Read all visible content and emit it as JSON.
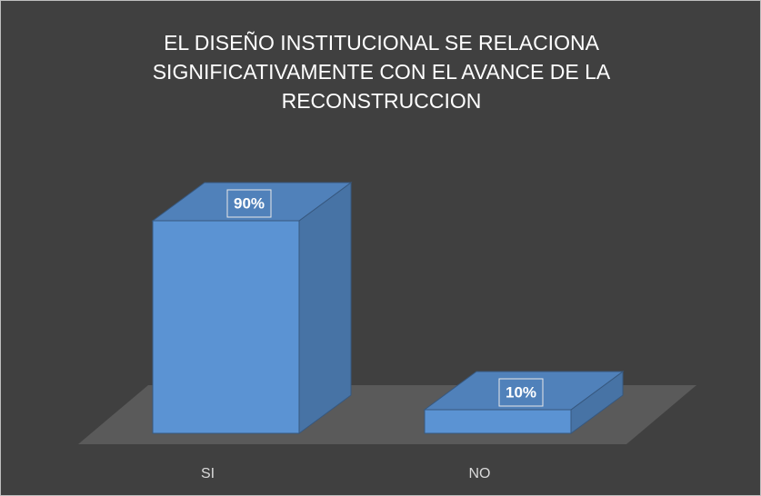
{
  "chart_data": {
    "type": "bar3d",
    "title": "EL DISEÑO INSTITUCIONAL SE RELACIONA SIGNIFICATIVAMENTE CON EL AVANCE DE LA RECONSTRUCCION",
    "categories": [
      "SI",
      "NO"
    ],
    "values": [
      90,
      10
    ],
    "value_labels": [
      "90%",
      "10%"
    ],
    "color": "#5b93d3"
  }
}
